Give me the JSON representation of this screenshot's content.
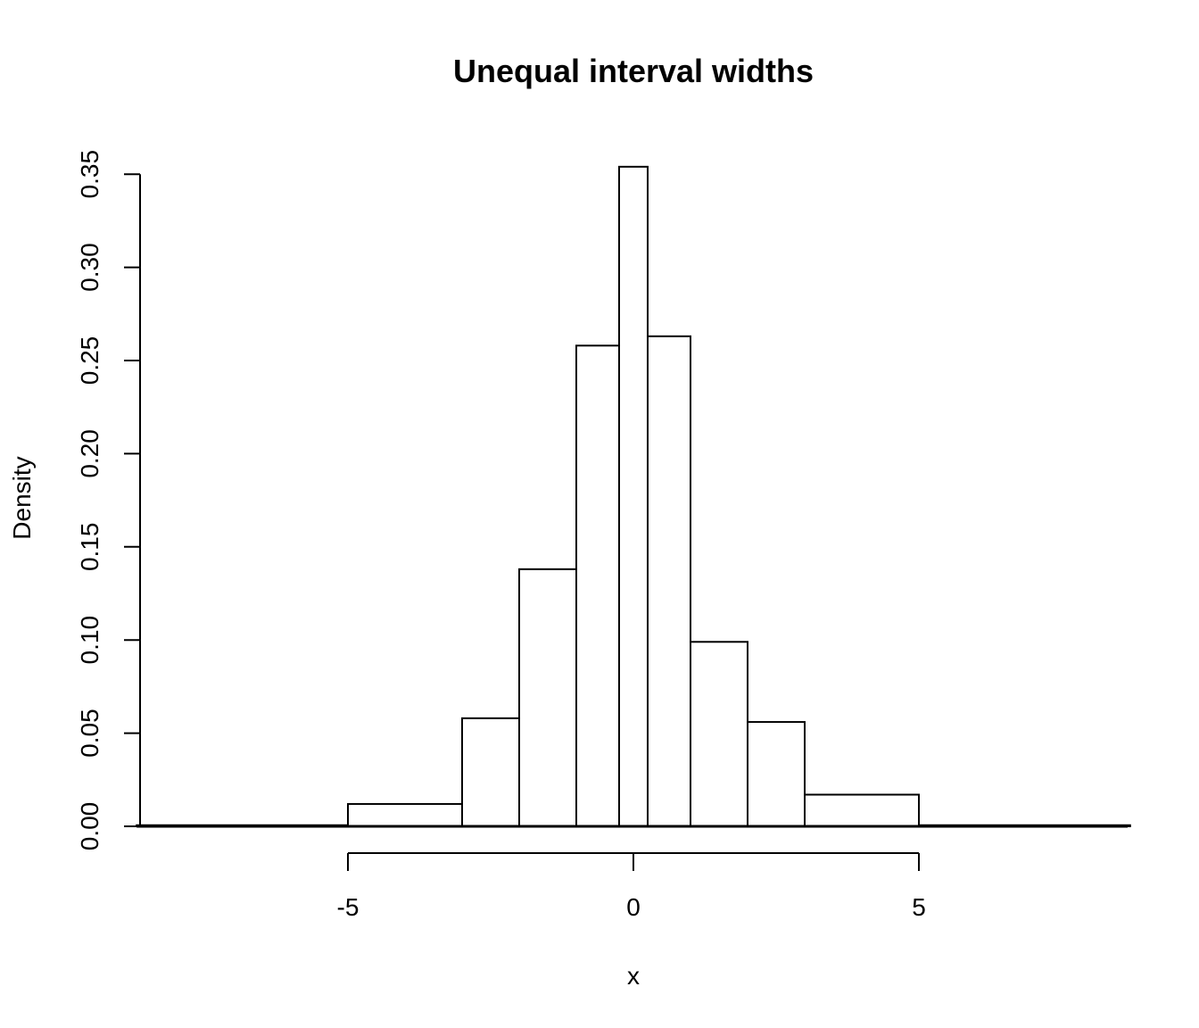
{
  "chart_data": {
    "type": "bar",
    "title": "Unequal interval widths",
    "xlabel": "x",
    "ylabel": "Density",
    "xlim": [
      -8.7,
      8.7
    ],
    "ylim": [
      0,
      0.35
    ],
    "x_ticks": [
      -5,
      0,
      5
    ],
    "x_tick_labels": [
      "-5",
      "0",
      "5"
    ],
    "y_ticks": [
      0,
      0.05,
      0.1,
      0.15,
      0.2,
      0.25,
      0.3,
      0.35
    ],
    "y_tick_labels": [
      "0.00",
      "0.05",
      "0.10",
      "0.15",
      "0.20",
      "0.25",
      "0.30",
      "0.35"
    ],
    "grid": false,
    "bins": [
      {
        "left": -8.7,
        "right": -5,
        "density": 0.0006
      },
      {
        "left": -5,
        "right": -3,
        "density": 0.012
      },
      {
        "left": -3,
        "right": -2,
        "density": 0.058
      },
      {
        "left": -2,
        "right": -1,
        "density": 0.138
      },
      {
        "left": -1,
        "right": -0.25,
        "density": 0.258
      },
      {
        "left": -0.25,
        "right": 0.25,
        "density": 0.354
      },
      {
        "left": 0.25,
        "right": 1,
        "density": 0.263
      },
      {
        "left": 1,
        "right": 2,
        "density": 0.099
      },
      {
        "left": 2,
        "right": 3,
        "density": 0.056
      },
      {
        "left": 3,
        "right": 5,
        "density": 0.017
      },
      {
        "left": 5,
        "right": 8.7,
        "density": 0.0006
      }
    ],
    "colors": {
      "fill": "#ffffff",
      "stroke": "#000000"
    }
  }
}
